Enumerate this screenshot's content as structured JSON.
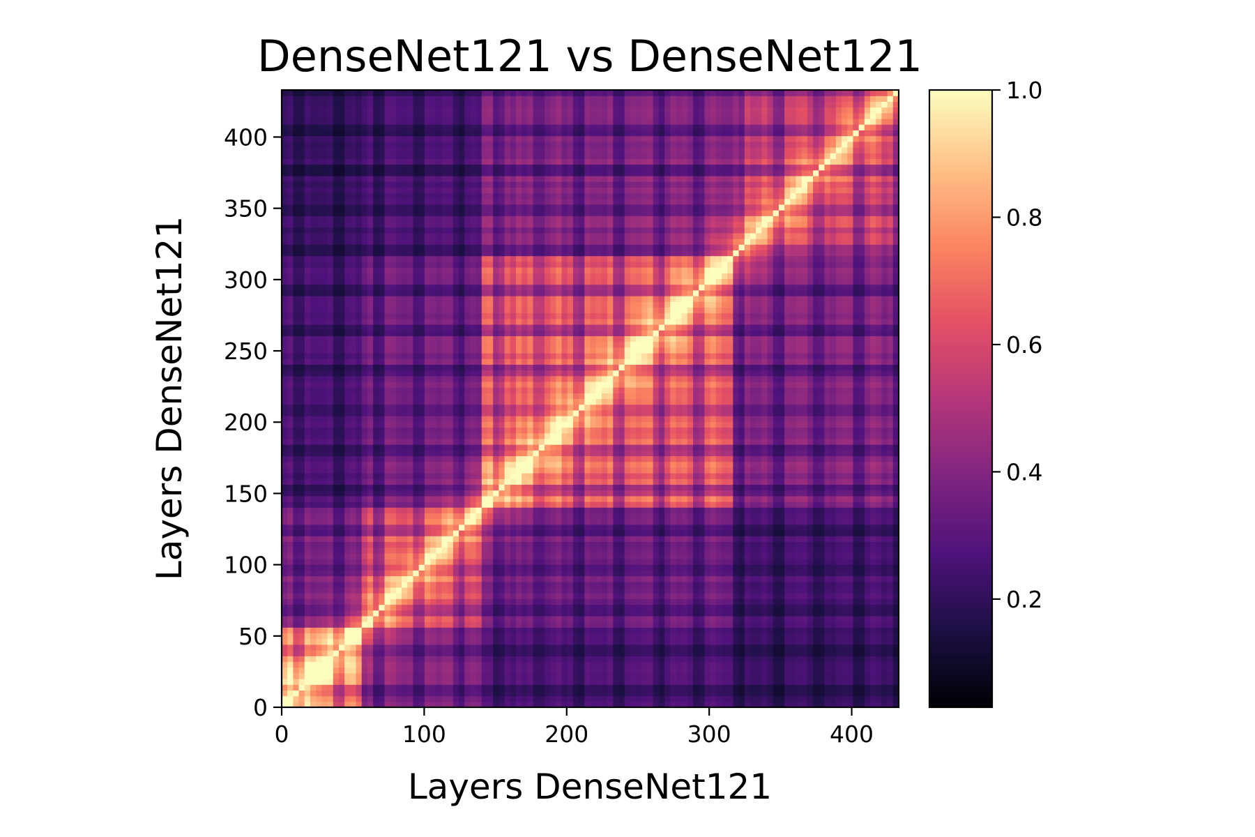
{
  "chart_data": {
    "type": "heatmap",
    "title": "DenseNet121 vs DenseNet121",
    "xlabel": "Layers DenseNet121",
    "ylabel": "Layers DenseNet121",
    "xlim": [
      0,
      433
    ],
    "ylim": [
      0,
      433
    ],
    "x_ticks": [
      0,
      100,
      200,
      300,
      400
    ],
    "y_ticks": [
      0,
      50,
      100,
      150,
      200,
      250,
      300,
      350,
      400
    ],
    "colormap": "magma",
    "colorbar": {
      "range": [
        0.03,
        1.0
      ],
      "ticks": [
        "0.2",
        "0.4",
        "0.6",
        "0.8",
        "1.0"
      ]
    },
    "layer_count": 433,
    "diagonal_value": 1.0,
    "block_boundaries": [
      0,
      55,
      140,
      315,
      433
    ],
    "block_similarity": [
      [
        0.78,
        0.42,
        0.3,
        0.25
      ],
      [
        0.42,
        0.65,
        0.4,
        0.3
      ],
      [
        0.3,
        0.4,
        0.72,
        0.45
      ],
      [
        0.25,
        0.3,
        0.45,
        0.62
      ]
    ],
    "color_stops": [
      "#000004",
      "#1c1044",
      "#4f127b",
      "#812581",
      "#b5367a",
      "#e55064",
      "#fb8761",
      "#fec287",
      "#fcfdbf"
    ],
    "grid": false,
    "legend": "colorbar-right"
  }
}
